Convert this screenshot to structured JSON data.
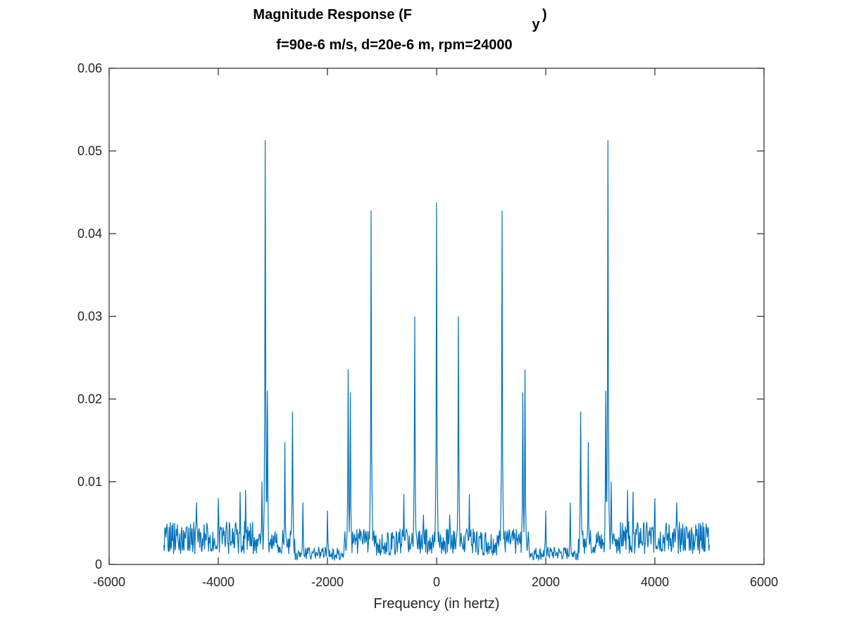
{
  "chart_data": {
    "type": "line",
    "title": {
      "main": "Magnitude Response (F",
      "subscript": "y",
      "close": ")"
    },
    "subtitle": "f=90e-6 m/s, d=20e-6 m, rpm=24000",
    "xlabel": "Frequency (in hertz)",
    "ylabel": "",
    "xlim": [
      -6000,
      6000
    ],
    "ylim": [
      0,
      0.06
    ],
    "xticks": [
      "-6000",
      "-4000",
      "-2000",
      "0",
      "2000",
      "4000",
      "6000"
    ],
    "yticks": [
      "0",
      "0.01",
      "0.02",
      "0.03",
      "0.04",
      "0.05",
      "0.06"
    ],
    "grid": false,
    "legend": "none",
    "series_color": "#0072BD",
    "series": [
      {
        "x_range": [
          -5000,
          5000
        ],
        "symmetric": true,
        "baseline_noise": 0.003,
        "peaks": [
          {
            "x": 0,
            "y": 0.0438
          },
          {
            "x": 400,
            "y": 0.03
          },
          {
            "x": 1200,
            "y": 0.0428
          },
          {
            "x": 1580,
            "y": 0.0208
          },
          {
            "x": 1620,
            "y": 0.0236
          },
          {
            "x": 2640,
            "y": 0.0185
          },
          {
            "x": 2780,
            "y": 0.0148
          },
          {
            "x": 3100,
            "y": 0.021
          },
          {
            "x": 3140,
            "y": 0.0513
          },
          {
            "x": 3200,
            "y": 0.01
          },
          {
            "x": 2000,
            "y": 0.0065
          },
          {
            "x": 4000,
            "y": 0.008
          },
          {
            "x": 4400,
            "y": 0.0075
          },
          {
            "x": 4800,
            "y": 0.005
          },
          {
            "x": 4950,
            "y": 0.0042
          },
          {
            "x": 3500,
            "y": 0.009
          },
          {
            "x": 3600,
            "y": 0.0088
          },
          {
            "x": 600,
            "y": 0.0085
          },
          {
            "x": 240,
            "y": 0.006
          },
          {
            "x": 2450,
            "y": 0.0075
          }
        ]
      }
    ]
  }
}
